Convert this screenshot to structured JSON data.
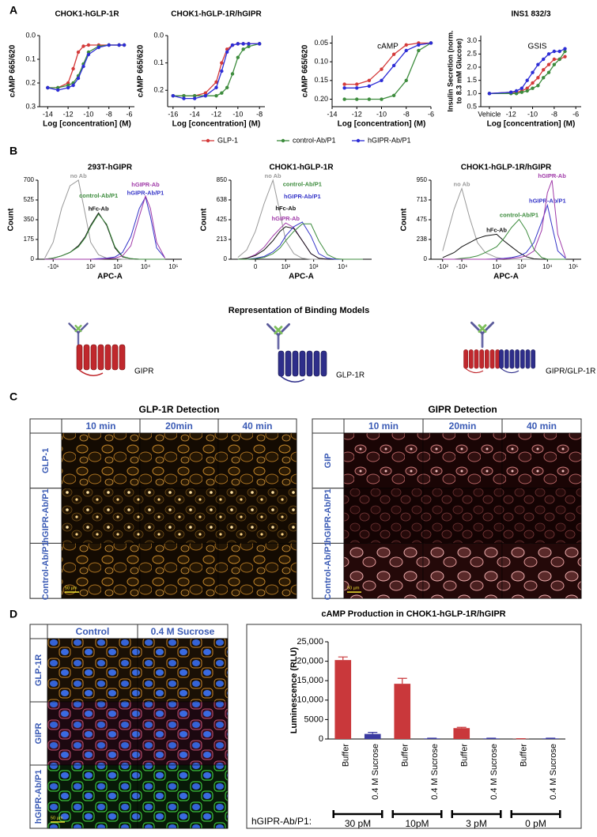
{
  "panel_labels": [
    "A",
    "B",
    "C",
    "D"
  ],
  "chart_data": [
    {
      "type": "line",
      "title": "CHOK1-hGLP-1R",
      "xlabel": "Log [concentration] (M)",
      "ylabel": "cAMP 665/620",
      "markers": true,
      "y_reversed": true,
      "legend": "bottom",
      "xlim": [
        -14.8,
        -5.5
      ],
      "xticks": [
        -14,
        -12,
        -10,
        -8,
        -6
      ],
      "ylim": [
        0,
        0.3
      ],
      "yticks": [
        {
          "value": 0,
          "label": "0.0"
        },
        0.1,
        0.2,
        0.3
      ],
      "x": [
        -14,
        -13,
        -12,
        -11.5,
        -11,
        -10.5,
        -10,
        -9,
        -8,
        -7,
        -6.5
      ],
      "series": [
        {
          "name": "GLP-1",
          "color": "#d43a3a",
          "values": [
            0.22,
            0.22,
            0.2,
            0.14,
            0.07,
            0.045,
            0.04,
            0.04,
            0.04,
            0.04,
            0.04
          ]
        },
        {
          "name": "control-Ab/P1",
          "color": "#3d8c3d",
          "values": [
            0.22,
            0.22,
            0.21,
            0.2,
            0.17,
            0.12,
            0.07,
            0.045,
            0.04,
            0.04,
            0.04
          ]
        },
        {
          "name": "hGIPR-Ab/P1",
          "color": "#2d2dd6",
          "values": [
            0.22,
            0.23,
            0.22,
            0.21,
            0.18,
            0.13,
            0.08,
            0.05,
            0.04,
            0.04,
            0.04
          ]
        }
      ]
    },
    {
      "type": "line",
      "title": "CHOK1-hGLP-1R/hGIPR",
      "xlabel": "Log [concentration] (M)",
      "ylabel": "cAMP 665/620",
      "markers": true,
      "y_reversed": true,
      "xlim": [
        -16.5,
        -7.5
      ],
      "xticks": [
        -16,
        -14,
        -12,
        -10,
        -8
      ],
      "ylim": [
        0,
        0.26
      ],
      "yticks": [
        {
          "value": 0,
          "label": "0.0"
        },
        0.1,
        0.2
      ],
      "x": [
        -16,
        -15,
        -14,
        -13,
        -12,
        -11.5,
        -11,
        -10.5,
        -10,
        -9.5,
        -9,
        -8
      ],
      "series": [
        {
          "color": "#d43a3a",
          "values": [
            0.22,
            0.22,
            0.22,
            0.21,
            0.17,
            0.1,
            0.05,
            0.035,
            0.03,
            0.03,
            0.03,
            0.03
          ]
        },
        {
          "color": "#3d8c3d",
          "values": [
            0.22,
            0.22,
            0.22,
            0.22,
            0.22,
            0.21,
            0.19,
            0.14,
            0.08,
            0.05,
            0.04,
            0.03
          ]
        },
        {
          "color": "#2d2dd6",
          "values": [
            0.22,
            0.23,
            0.23,
            0.22,
            0.19,
            0.13,
            0.06,
            0.035,
            0.03,
            0.03,
            0.03,
            0.03
          ]
        }
      ]
    },
    {
      "type": "line",
      "annotation": "cAMP",
      "xlabel": "Log [concentration] (M)",
      "ylabel": "cAMP 665/620",
      "markers": true,
      "y_reversed": true,
      "xlim": [
        -14,
        -6
      ],
      "xticks": [
        -14,
        -12,
        -10,
        -8,
        -6
      ],
      "ylim": [
        0.03,
        0.22
      ],
      "yticks": [
        0.05,
        {
          "value": 0.1,
          "label": "0.10"
        },
        0.15,
        {
          "value": 0.2,
          "label": "0.20"
        }
      ],
      "x": [
        -13,
        -12,
        -11,
        -10,
        -9,
        -8,
        -7,
        -6
      ],
      "series": [
        {
          "color": "#d43a3a",
          "values": [
            0.16,
            0.16,
            0.15,
            0.12,
            0.08,
            0.055,
            0.05,
            0.05
          ]
        },
        {
          "color": "#3d8c3d",
          "values": [
            0.2,
            0.2,
            0.2,
            0.2,
            0.19,
            0.15,
            0.07,
            0.05
          ]
        },
        {
          "color": "#2d2dd6",
          "values": [
            0.17,
            0.17,
            0.165,
            0.15,
            0.11,
            0.07,
            0.055,
            0.05
          ]
        }
      ]
    },
    {
      "type": "line",
      "title": "INS1 832/3",
      "annotation": "GSIS",
      "xlabel": "Log [concentration] (M)",
      "ylabel": [
        "Insulin Secretion (norm.",
        "to 8.3 mM Glucose)"
      ],
      "markers": true,
      "y_reversed": false,
      "xlim": [
        -14.8,
        -5.5
      ],
      "xticks": [
        {
          "value": -14,
          "label": "Vehicle"
        },
        -12,
        -10,
        -8,
        -6
      ],
      "ylim": [
        0.5,
        3.2
      ],
      "yticks": [
        0.5,
        {
          "value": 1,
          "label": "1.0"
        },
        1.5,
        {
          "value": 2,
          "label": "2.0"
        },
        2.5,
        {
          "value": 3,
          "label": "3.0"
        }
      ],
      "x": [
        -14,
        -12,
        -11.5,
        -11,
        -10.5,
        -10,
        -9.5,
        -9,
        -8.5,
        -8,
        -7.5,
        -7
      ],
      "series": [
        {
          "color": "#d43a3a",
          "values": [
            1.0,
            1.05,
            1.05,
            1.1,
            1.2,
            1.4,
            1.6,
            1.9,
            2.1,
            2.3,
            2.3,
            2.4
          ]
        },
        {
          "color": "#3d8c3d",
          "values": [
            1.0,
            1.0,
            1.0,
            1.05,
            1.1,
            1.2,
            1.3,
            1.6,
            1.8,
            2.1,
            2.3,
            2.6
          ]
        },
        {
          "color": "#2d2dd6",
          "values": [
            1.0,
            1.05,
            1.1,
            1.2,
            1.5,
            1.8,
            2.1,
            2.3,
            2.5,
            2.6,
            2.6,
            2.7
          ]
        }
      ]
    },
    {
      "type": "line",
      "title": "293T-hGIPR",
      "xlabel": "APC-A",
      "ylabel": "Count",
      "xscale": "symlog",
      "legend": "inline",
      "xlim": [
        -60,
        200000
      ],
      "xticks": [
        {
          "value": -10,
          "label": "-10¹"
        },
        {
          "value": 100,
          "label": "10²"
        },
        {
          "value": 1000,
          "label": "10³"
        },
        {
          "value": 10000,
          "label": "10⁴"
        },
        {
          "value": 100000,
          "label": "10⁵"
        }
      ],
      "ylim": [
        0,
        700
      ],
      "yticks": [
        0,
        175,
        350,
        525,
        700
      ],
      "x": [
        -30,
        -10,
        0,
        10,
        30,
        60,
        100,
        200,
        400,
        800,
        1500,
        3000,
        6000,
        10000,
        15000,
        25000,
        50000
      ],
      "series": [
        {
          "name": "no Ab",
          "color": "#999999",
          "values": [
            10,
            150,
            450,
            650,
            700,
            400,
            150,
            40,
            10,
            5,
            0,
            0,
            0,
            0,
            0,
            0,
            0
          ]
        },
        {
          "name": "hFc-Ab",
          "color": "#111111",
          "values": [
            0,
            10,
            30,
            60,
            120,
            200,
            300,
            410,
            300,
            100,
            20,
            5,
            0,
            0,
            0,
            0,
            0
          ]
        },
        {
          "name": "control-Ab/P1",
          "color": "#3d8c3d",
          "values": [
            0,
            10,
            30,
            60,
            110,
            190,
            290,
            400,
            310,
            110,
            25,
            5,
            0,
            0,
            0,
            0,
            0
          ]
        },
        {
          "name": "hGIPR-Ab/P1",
          "color": "#3535c8",
          "values": [
            0,
            0,
            0,
            0,
            0,
            0,
            0,
            5,
            10,
            20,
            60,
            200,
            450,
            550,
            380,
            100,
            10
          ]
        },
        {
          "name": "hGIPR-Ab",
          "color": "#a03aa8",
          "values": [
            0,
            0,
            0,
            0,
            0,
            0,
            0,
            0,
            5,
            10,
            30,
            120,
            380,
            560,
            450,
            150,
            10
          ]
        }
      ]
    },
    {
      "type": "line",
      "title": "CHOK1-hGLP-1R",
      "xlabel": "APC-A",
      "ylabel": "Count",
      "xscale": "symlog",
      "legend": "inline",
      "xlim": [
        -60,
        100000
      ],
      "xticks": [
        0,
        {
          "value": 100,
          "label": "10²"
        },
        {
          "value": 1000,
          "label": "10³"
        },
        {
          "value": 10000,
          "label": "10⁴"
        }
      ],
      "ylim": [
        0,
        850
      ],
      "yticks": [
        0,
        213,
        425,
        638,
        850
      ],
      "x": [
        -30,
        -10,
        0,
        10,
        30,
        60,
        100,
        200,
        400,
        800,
        1500,
        3000,
        6000,
        10000,
        15000,
        25000,
        50000
      ],
      "series": [
        {
          "name": "no Ab",
          "color": "#999999",
          "values": [
            20,
            100,
            300,
            600,
            850,
            500,
            200,
            60,
            10,
            0,
            0,
            0,
            0,
            0,
            0,
            0,
            0
          ]
        },
        {
          "name": "hGIPR-Ab",
          "color": "#a03aa8",
          "values": [
            0,
            10,
            50,
            130,
            250,
            330,
            390,
            340,
            200,
            60,
            10,
            0,
            0,
            0,
            0,
            0,
            0
          ]
        },
        {
          "name": "hFc-Ab",
          "color": "#111111",
          "values": [
            0,
            10,
            40,
            100,
            200,
            300,
            350,
            330,
            200,
            60,
            10,
            0,
            0,
            0,
            0,
            0,
            0
          ]
        },
        {
          "name": "hGIPR-Ab/P1",
          "color": "#3535c8",
          "values": [
            0,
            0,
            10,
            30,
            80,
            150,
            250,
            350,
            400,
            250,
            60,
            10,
            0,
            0,
            0,
            0,
            0
          ]
        },
        {
          "name": "control-Ab/P1",
          "color": "#3d8c3d",
          "values": [
            0,
            0,
            5,
            20,
            60,
            120,
            200,
            300,
            380,
            380,
            200,
            50,
            5,
            0,
            0,
            0,
            0
          ]
        }
      ]
    },
    {
      "type": "line",
      "title": "CHOK1-hGLP-1R/hGIPR",
      "xlabel": "APC-A",
      "ylabel": "Count",
      "xscale": "symlog",
      "legend": "inline",
      "xlim": [
        -300,
        200000
      ],
      "xticks": [
        {
          "value": -100,
          "label": "-10²"
        },
        {
          "value": -10,
          "label": "-10¹"
        },
        {
          "value": 100,
          "label": "10²"
        },
        {
          "value": 1000,
          "label": "10³"
        },
        {
          "value": 10000,
          "label": "10⁴"
        },
        {
          "value": 100000,
          "label": "10⁵"
        }
      ],
      "ylim": [
        0,
        950
      ],
      "yticks": [
        0,
        238,
        475,
        713,
        950
      ],
      "x": [
        -100,
        -30,
        -10,
        0,
        10,
        30,
        100,
        200,
        400,
        800,
        1500,
        3000,
        6000,
        10000,
        15000,
        25000,
        50000
      ],
      "series": [
        {
          "name": "no Ab",
          "color": "#999999",
          "values": [
            100,
            600,
            850,
            500,
            200,
            80,
            20,
            5,
            0,
            0,
            0,
            0,
            0,
            0,
            0,
            0,
            0
          ]
        },
        {
          "name": "hFc-Ab",
          "color": "#111111",
          "values": [
            20,
            80,
            150,
            200,
            250,
            280,
            300,
            220,
            150,
            80,
            30,
            5,
            0,
            0,
            0,
            0,
            0
          ]
        },
        {
          "name": "control-Ab/P1",
          "color": "#3d8c3d",
          "values": [
            0,
            0,
            10,
            20,
            40,
            80,
            150,
            250,
            380,
            480,
            350,
            120,
            20,
            0,
            0,
            0,
            0
          ]
        },
        {
          "name": "hGIPR-Ab/P1",
          "color": "#3535c8",
          "values": [
            0,
            0,
            0,
            0,
            0,
            0,
            5,
            10,
            20,
            40,
            80,
            200,
            450,
            650,
            400,
            100,
            10
          ]
        },
        {
          "name": "hGIPR-Ab",
          "color": "#a03aa8",
          "values": [
            0,
            0,
            0,
            0,
            0,
            0,
            0,
            5,
            10,
            20,
            40,
            100,
            350,
            800,
            950,
            300,
            20
          ]
        }
      ]
    },
    {
      "type": "bar",
      "title": "cAMP Production in CHOK1-hGLP-1R/hGIPR",
      "ylabel": "Luminescence (RLU)",
      "categories": [
        "Buffer",
        "0.4 M Sucrose",
        "Buffer",
        "0.4 M Sucrose",
        "Buffer",
        "0.4 M Sucrose",
        "Buffer",
        "0.4 M Sucrose"
      ],
      "values": [
        20300,
        1300,
        14200,
        150,
        2800,
        150,
        50,
        150
      ],
      "errors": [
        800,
        400,
        1400,
        50,
        200,
        50,
        30,
        50
      ],
      "colors": [
        "#c9383b",
        "#3a3aa0",
        "#c9383b",
        "#3a3aa0",
        "#c9383b",
        "#3a3aa0",
        "#c9383b",
        "#3a3aa0"
      ],
      "ylim": [
        0,
        25000
      ],
      "yticks": [
        0,
        5000,
        {
          "value": 10000,
          "label": "10,000"
        },
        {
          "value": 15000,
          "label": "15,000"
        },
        {
          "value": 20000,
          "label": "20,000"
        },
        {
          "value": 25000,
          "label": "25,000"
        }
      ],
      "group_label": "hGIPR-Ab/P1:",
      "groups": [
        "30 pM",
        "10pM",
        "3 pM",
        "0 pM"
      ]
    }
  ],
  "binding_models": {
    "title": "Representation of Binding Models",
    "labels": [
      "GIPR",
      "GLP-1R",
      "GIPR/GLP-1R"
    ]
  },
  "panel_c": {
    "left": {
      "title": "GLP-1R Detection",
      "columns": [
        "10 min",
        "20min",
        "40 min"
      ],
      "rows": [
        "GLP-1",
        "hGIPR-Ab/P1",
        "Control-Ab/P1"
      ]
    },
    "right": {
      "title": "GIPR Detection",
      "columns": [
        "10 min",
        "20min",
        "40 min"
      ],
      "rows": [
        "GIP",
        "hGIPR-Ab/P1",
        "Control-Ab/P1"
      ]
    },
    "scale_bar": "50 µm"
  },
  "panel_d_images": {
    "columns": [
      "Control",
      "0.4 M Sucrose"
    ],
    "rows": [
      "GLP-1R",
      "GIPR",
      "hGIPR-Ab/P1"
    ],
    "scale_bar": "50 µm"
  }
}
